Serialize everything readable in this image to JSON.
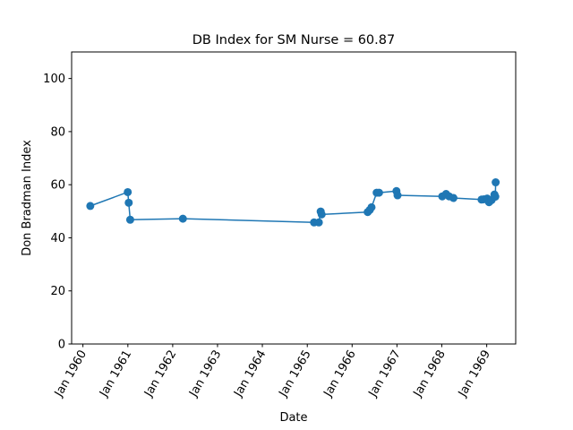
{
  "chart_data": {
    "type": "line",
    "title": "DB Index for SM Nurse = 60.87",
    "xlabel": "Date",
    "ylabel": "Don Bradman Index",
    "xlim": [
      "1959-10-01",
      "1969-08-25"
    ],
    "ylim": [
      0,
      110
    ],
    "yticks": [
      0,
      20,
      40,
      60,
      80,
      100
    ],
    "xticks": [
      {
        "date": "1960-01-01",
        "label": "Jan 1960"
      },
      {
        "date": "1961-01-01",
        "label": "Jan 1961"
      },
      {
        "date": "1962-01-01",
        "label": "Jan 1962"
      },
      {
        "date": "1963-01-01",
        "label": "Jan 1963"
      },
      {
        "date": "1964-01-01",
        "label": "Jan 1964"
      },
      {
        "date": "1965-01-01",
        "label": "Jan 1965"
      },
      {
        "date": "1966-01-01",
        "label": "Jan 1966"
      },
      {
        "date": "1967-01-01",
        "label": "Jan 1967"
      },
      {
        "date": "1968-01-01",
        "label": "Jan 1968"
      },
      {
        "date": "1969-01-01",
        "label": "Jan 1969"
      }
    ],
    "color": "#1f77b4",
    "grid": false,
    "series": [
      {
        "points": [
          {
            "x": "1960-03-01",
            "y": 52.0
          },
          {
            "x": "1960-12-31",
            "y": 57.2
          },
          {
            "x": "1961-01-08",
            "y": 53.2
          },
          {
            "x": "1961-01-20",
            "y": 46.8
          },
          {
            "x": "1962-03-25",
            "y": 47.2
          },
          {
            "x": "1965-02-25",
            "y": 45.8
          },
          {
            "x": "1965-04-05",
            "y": 45.8
          },
          {
            "x": "1965-04-20",
            "y": 49.9
          },
          {
            "x": "1965-04-28",
            "y": 48.8
          },
          {
            "x": "1966-05-08",
            "y": 49.7
          },
          {
            "x": "1966-05-25",
            "y": 50.5
          },
          {
            "x": "1966-06-08",
            "y": 51.5
          },
          {
            "x": "1966-07-20",
            "y": 57.0
          },
          {
            "x": "1966-08-08",
            "y": 57.0
          },
          {
            "x": "1966-12-28",
            "y": 57.6
          },
          {
            "x": "1967-01-06",
            "y": 56.0
          },
          {
            "x": "1968-01-05",
            "y": 55.6
          },
          {
            "x": "1968-02-05",
            "y": 56.5
          },
          {
            "x": "1968-03-01",
            "y": 55.6
          },
          {
            "x": "1968-04-05",
            "y": 55.0
          },
          {
            "x": "1968-11-20",
            "y": 54.4
          },
          {
            "x": "1968-12-08",
            "y": 54.5
          },
          {
            "x": "1969-01-05",
            "y": 54.8
          },
          {
            "x": "1969-01-20",
            "y": 53.4
          },
          {
            "x": "1969-02-10",
            "y": 54.2
          },
          {
            "x": "1969-03-05",
            "y": 56.3
          },
          {
            "x": "1969-03-12",
            "y": 55.5
          },
          {
            "x": "1969-03-15",
            "y": 60.9
          }
        ]
      }
    ]
  }
}
